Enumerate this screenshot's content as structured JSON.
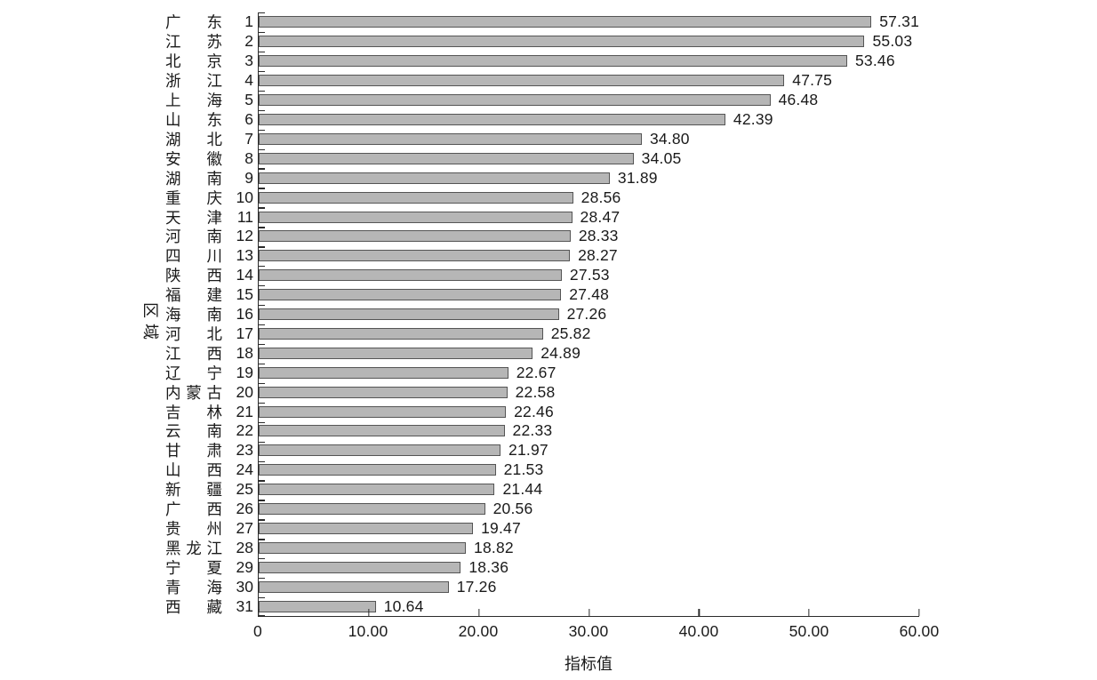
{
  "chart_data": {
    "type": "bar",
    "orientation": "horizontal",
    "title": "",
    "xlabel": "指标值",
    "ylabel": "区域",
    "xlim": [
      0,
      60
    ],
    "grid": false,
    "legend": "none",
    "bar_fill_color": "#b6b6b6",
    "bar_border_color": "#555555",
    "axis_color": "#2b2b2b",
    "x_ticks": [
      {
        "value": 0,
        "label": "0"
      },
      {
        "value": 10,
        "label": "10.00"
      },
      {
        "value": 20,
        "label": "20.00"
      },
      {
        "value": 30,
        "label": "30.00"
      },
      {
        "value": 40,
        "label": "40.00"
      },
      {
        "value": 50,
        "label": "50.00"
      },
      {
        "value": 60,
        "label": "60.00"
      }
    ],
    "rows": [
      {
        "province": "广东",
        "rank": "1",
        "value": 57.31,
        "value_label": "57.31"
      },
      {
        "province": "江苏",
        "rank": "2",
        "value": 55.03,
        "value_label": "55.03"
      },
      {
        "province": "北京",
        "rank": "3",
        "value": 53.46,
        "value_label": "53.46"
      },
      {
        "province": "浙江",
        "rank": "4",
        "value": 47.75,
        "value_label": "47.75"
      },
      {
        "province": "上海",
        "rank": "5",
        "value": 46.48,
        "value_label": "46.48"
      },
      {
        "province": "山东",
        "rank": "6",
        "value": 42.39,
        "value_label": "42.39"
      },
      {
        "province": "湖北",
        "rank": "7",
        "value": 34.8,
        "value_label": "34.80"
      },
      {
        "province": "安徽",
        "rank": "8",
        "value": 34.05,
        "value_label": "34.05"
      },
      {
        "province": "湖南",
        "rank": "9",
        "value": 31.89,
        "value_label": "31.89"
      },
      {
        "province": "重庆",
        "rank": "10",
        "value": 28.56,
        "value_label": "28.56"
      },
      {
        "province": "天津",
        "rank": "11",
        "value": 28.47,
        "value_label": "28.47"
      },
      {
        "province": "河南",
        "rank": "12",
        "value": 28.33,
        "value_label": "28.33"
      },
      {
        "province": "四川",
        "rank": "13",
        "value": 28.27,
        "value_label": "28.27"
      },
      {
        "province": "陕西",
        "rank": "14",
        "value": 27.53,
        "value_label": "27.53"
      },
      {
        "province": "福建",
        "rank": "15",
        "value": 27.48,
        "value_label": "27.48"
      },
      {
        "province": "海南",
        "rank": "16",
        "value": 27.26,
        "value_label": "27.26"
      },
      {
        "province": "河北",
        "rank": "17",
        "value": 25.82,
        "value_label": "25.82"
      },
      {
        "province": "江西",
        "rank": "18",
        "value": 24.89,
        "value_label": "24.89"
      },
      {
        "province": "辽宁",
        "rank": "19",
        "value": 22.67,
        "value_label": "22.67"
      },
      {
        "province": "内蒙古",
        "rank": "20",
        "value": 22.58,
        "value_label": "22.58"
      },
      {
        "province": "吉林",
        "rank": "21",
        "value": 22.46,
        "value_label": "22.46"
      },
      {
        "province": "云南",
        "rank": "22",
        "value": 22.33,
        "value_label": "22.33"
      },
      {
        "province": "甘肃",
        "rank": "23",
        "value": 21.97,
        "value_label": "21.97"
      },
      {
        "province": "山西",
        "rank": "24",
        "value": 21.53,
        "value_label": "21.53"
      },
      {
        "province": "新疆",
        "rank": "25",
        "value": 21.44,
        "value_label": "21.44"
      },
      {
        "province": "广西",
        "rank": "26",
        "value": 20.56,
        "value_label": "20.56"
      },
      {
        "province": "贵州",
        "rank": "27",
        "value": 19.47,
        "value_label": "19.47"
      },
      {
        "province": "黑龙江",
        "rank": "28",
        "value": 18.82,
        "value_label": "18.82"
      },
      {
        "province": "宁夏",
        "rank": "29",
        "value": 18.36,
        "value_label": "18.36"
      },
      {
        "province": "青海",
        "rank": "30",
        "value": 17.26,
        "value_label": "17.26"
      },
      {
        "province": "西藏",
        "rank": "31",
        "value": 10.64,
        "value_label": "10.64"
      }
    ]
  }
}
